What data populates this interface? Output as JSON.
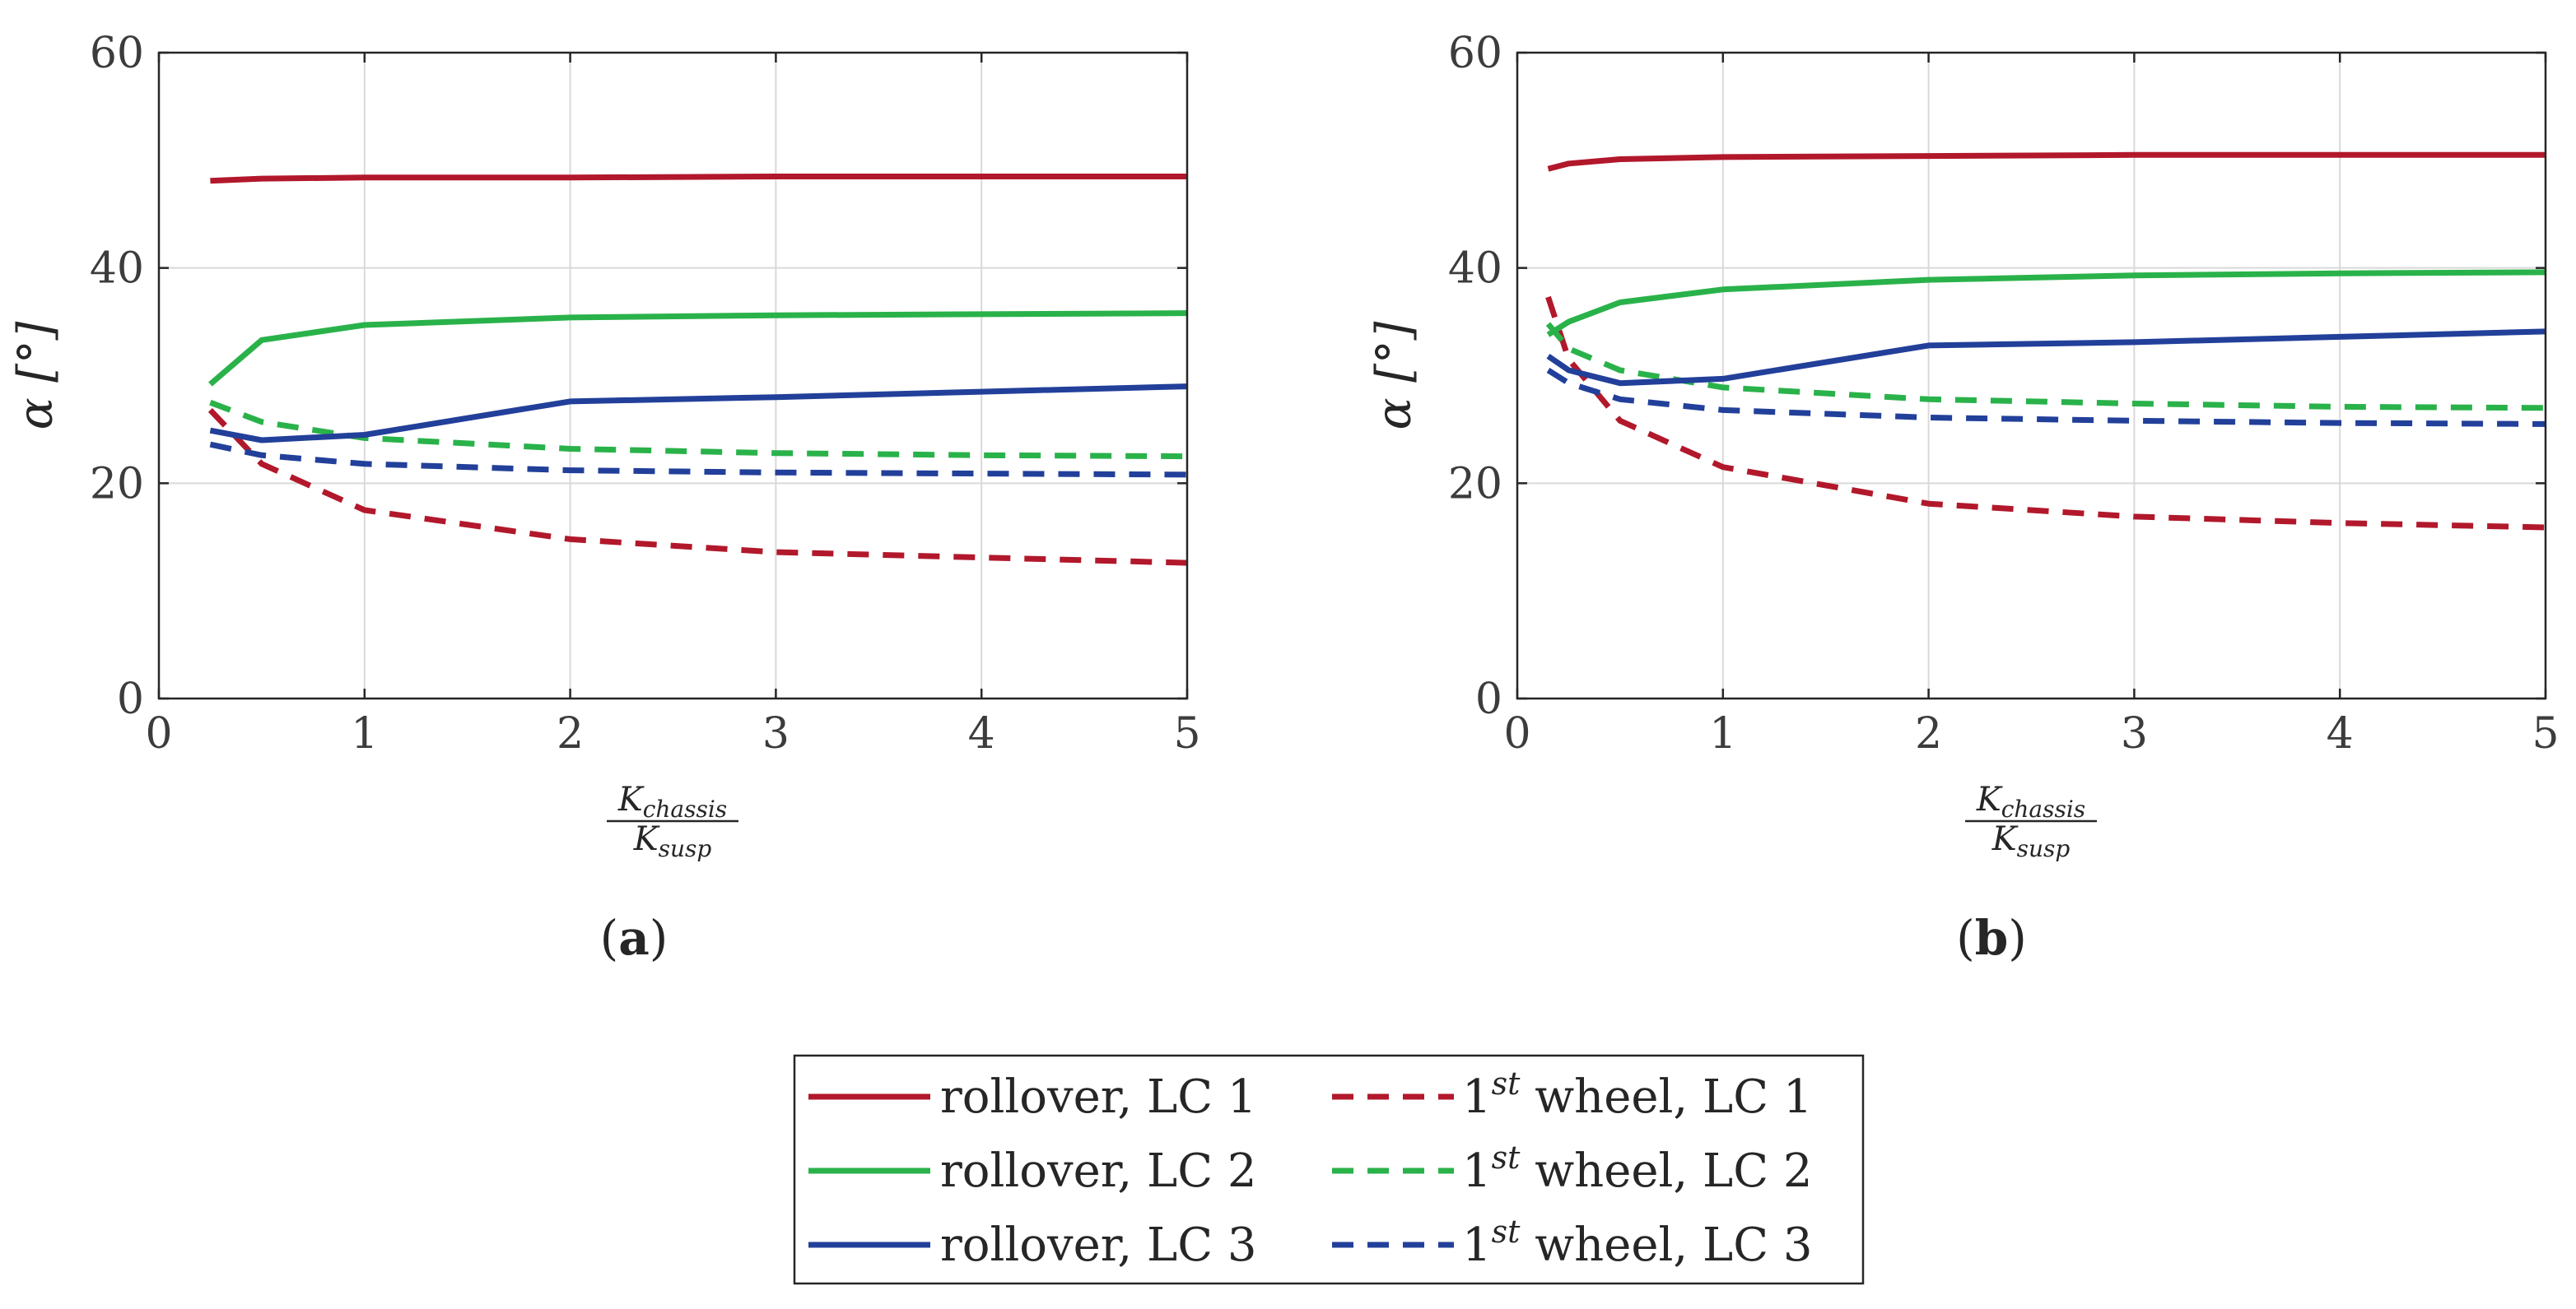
{
  "colors": {
    "lc1": "#b2182b",
    "lc2": "#2ab24a",
    "lc3": "#22409a"
  },
  "chart_data": [
    {
      "id": "a",
      "type": "line",
      "panel_label": "a",
      "xlabel_num": "K",
      "xlabel_num_sub": "chassis",
      "xlabel_den": "K",
      "xlabel_den_sub": "susp",
      "ylabel": "α [°]",
      "xlim": [
        0,
        5
      ],
      "ylim": [
        0,
        60
      ],
      "xticks": [
        0,
        1,
        2,
        3,
        4,
        5
      ],
      "yticks": [
        0,
        20,
        40,
        60
      ],
      "grid": true,
      "series": [
        {
          "name": "rollover, LC 1",
          "color": "lc1",
          "dash": "solid",
          "x": [
            0.25,
            0.5,
            1,
            2,
            3,
            4,
            5
          ],
          "y": [
            48.1,
            48.3,
            48.4,
            48.4,
            48.5,
            48.5,
            48.5
          ]
        },
        {
          "name": "1st wheel, LC 1",
          "color": "lc1",
          "dash": "dashed",
          "x": [
            0.25,
            0.5,
            1,
            2,
            3,
            4,
            5
          ],
          "y": [
            26.8,
            21.8,
            17.5,
            14.8,
            13.6,
            13.1,
            12.6
          ]
        },
        {
          "name": "rollover, LC 2",
          "color": "lc2",
          "dash": "solid",
          "x": [
            0.25,
            0.5,
            1,
            2,
            3,
            4,
            5
          ],
          "y": [
            29.2,
            33.3,
            34.7,
            35.4,
            35.6,
            35.7,
            35.8
          ]
        },
        {
          "name": "1st wheel, LC 2",
          "color": "lc2",
          "dash": "dashed",
          "x": [
            0.25,
            0.5,
            1,
            2,
            3,
            4,
            5
          ],
          "y": [
            27.5,
            25.7,
            24.2,
            23.2,
            22.8,
            22.6,
            22.5
          ]
        },
        {
          "name": "rollover, LC 3",
          "color": "lc3",
          "dash": "solid",
          "x": [
            0.25,
            0.5,
            1,
            2,
            3,
            4,
            5
          ],
          "y": [
            24.9,
            24.0,
            24.5,
            27.6,
            28.0,
            28.5,
            29.0
          ]
        },
        {
          "name": "1st wheel, LC 3",
          "color": "lc3",
          "dash": "dashed",
          "x": [
            0.25,
            0.5,
            1,
            2,
            3,
            4,
            5
          ],
          "y": [
            23.6,
            22.6,
            21.8,
            21.2,
            21.0,
            20.9,
            20.8
          ]
        }
      ]
    },
    {
      "id": "b",
      "type": "line",
      "panel_label": "b",
      "xlabel_num": "K",
      "xlabel_num_sub": "chassis",
      "xlabel_den": "K",
      "xlabel_den_sub": "susp",
      "ylabel": "α [°]",
      "xlim": [
        0,
        5
      ],
      "ylim": [
        0,
        60
      ],
      "xticks": [
        0,
        1,
        2,
        3,
        4,
        5
      ],
      "yticks": [
        0,
        20,
        40,
        60
      ],
      "grid": true,
      "series": [
        {
          "name": "rollover, LC 1",
          "color": "lc1",
          "dash": "solid",
          "x": [
            0.15,
            0.25,
            0.5,
            1,
            2,
            3,
            4,
            5
          ],
          "y": [
            49.2,
            49.7,
            50.1,
            50.3,
            50.4,
            50.5,
            50.5,
            50.5
          ]
        },
        {
          "name": "1st wheel, LC 1",
          "color": "lc1",
          "dash": "dashed",
          "x": [
            0.15,
            0.25,
            0.5,
            1,
            2,
            3,
            4,
            5
          ],
          "y": [
            37.3,
            31.5,
            25.8,
            21.5,
            18.1,
            16.9,
            16.3,
            15.9
          ]
        },
        {
          "name": "rollover, LC 2",
          "color": "lc2",
          "dash": "solid",
          "x": [
            0.15,
            0.25,
            0.5,
            1,
            2,
            3,
            4,
            5
          ],
          "y": [
            33.8,
            35.0,
            36.8,
            38.0,
            38.9,
            39.3,
            39.5,
            39.6
          ]
        },
        {
          "name": "1st wheel, LC 2",
          "color": "lc2",
          "dash": "dashed",
          "x": [
            0.15,
            0.25,
            0.5,
            1,
            2,
            3,
            4,
            5
          ],
          "y": [
            34.8,
            32.5,
            30.5,
            28.9,
            27.8,
            27.4,
            27.1,
            27.0
          ]
        },
        {
          "name": "rollover, LC 3",
          "color": "lc3",
          "dash": "solid",
          "x": [
            0.15,
            0.25,
            0.5,
            1,
            2,
            3,
            4,
            5
          ],
          "y": [
            31.8,
            30.5,
            29.3,
            29.7,
            32.8,
            33.1,
            33.6,
            34.1
          ]
        },
        {
          "name": "1st wheel, LC 3",
          "color": "lc3",
          "dash": "dashed",
          "x": [
            0.15,
            0.25,
            0.5,
            1,
            2,
            3,
            4,
            5
          ],
          "y": [
            30.5,
            29.3,
            27.8,
            26.8,
            26.1,
            25.8,
            25.6,
            25.5
          ]
        }
      ]
    }
  ],
  "legend": {
    "location": "bottom-center",
    "entries": [
      {
        "label": "rollover, LC 1",
        "color": "lc1",
        "dash": "solid"
      },
      {
        "label_pre": "1",
        "label_sup": "st",
        "label_post": " wheel, LC 1",
        "color": "lc1",
        "dash": "dashed"
      },
      {
        "label": "rollover, LC 2",
        "color": "lc2",
        "dash": "solid"
      },
      {
        "label_pre": "1",
        "label_sup": "st",
        "label_post": " wheel, LC 2",
        "color": "lc2",
        "dash": "dashed"
      },
      {
        "label": "rollover, LC 3",
        "color": "lc3",
        "dash": "solid"
      },
      {
        "label_pre": "1",
        "label_sup": "st",
        "label_post": " wheel, LC 3",
        "color": "lc3",
        "dash": "dashed"
      }
    ]
  }
}
